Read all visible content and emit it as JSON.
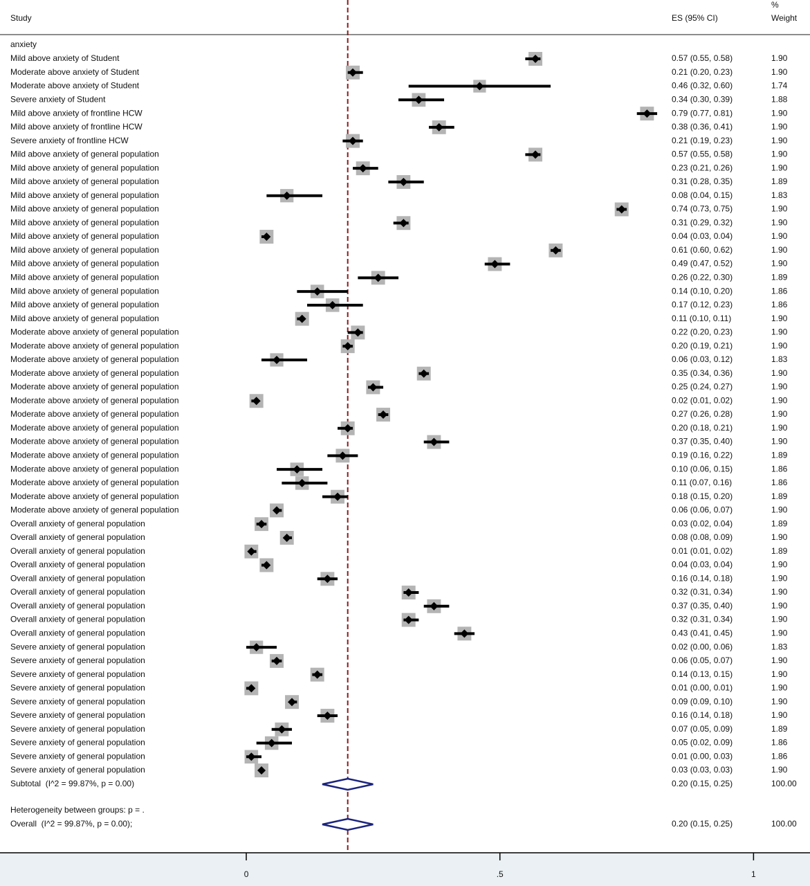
{
  "chart_data": {
    "type": "forest",
    "headers": {
      "study": "Study",
      "es": "ES (95% CI)",
      "weight_top": "%",
      "weight_bottom": "Weight"
    },
    "group": "anxiety",
    "categories": [
      "Mild above anxiety of Student",
      "Moderate above anxiety of Student",
      "Moderate above anxiety of Student",
      "Severe anxiety of Student",
      "Mild above anxiety of frontline HCW",
      "Mild above anxiety of frontline HCW",
      "Severe anxiety of frontline HCW",
      "Mild above anxiety of general population",
      "Mild above anxiety of general population",
      "Mild above anxiety of general population",
      "Mild above anxiety of general population",
      "Mild above anxiety of general population",
      "Mild above anxiety of general population",
      "Mild above anxiety of general population",
      "Mild above anxiety of general population",
      "Mild above anxiety of general population",
      "Mild above anxiety of general population",
      "Mild above anxiety of general population",
      "Mild above anxiety of general population",
      "Mild above anxiety of general population",
      "Moderate above anxiety of general population",
      "Moderate above anxiety of general population",
      "Moderate above anxiety of general population",
      "Moderate above anxiety of general population",
      "Moderate above anxiety of general population",
      "Moderate above anxiety of general population",
      "Moderate above anxiety of general population",
      "Moderate above anxiety of general population",
      "Moderate above anxiety of general population",
      "Moderate above anxiety of general population",
      "Moderate above anxiety of general population",
      "Moderate above anxiety of general population",
      "Moderate above anxiety of general population",
      "Moderate above anxiety of general population",
      "Overall anxiety of general population",
      "Overall anxiety of general population",
      "Overall anxiety of general population",
      "Overall anxiety of general population",
      "Overall anxiety of general population",
      "Overall anxiety of general population",
      "Overall anxiety of general population",
      "Overall anxiety of general population",
      "Overall anxiety of general population",
      "Severe anxiety of general population",
      "Severe anxiety of general population",
      "Severe anxiety of general population",
      "Severe anxiety of general population",
      "Severe anxiety of general population",
      "Severe anxiety of general population",
      "Severe anxiety of general population",
      "Severe anxiety of general population",
      "Severe anxiety of general population",
      "Severe anxiety of general population"
    ],
    "values": [
      0.57,
      0.21,
      0.46,
      0.34,
      0.79,
      0.38,
      0.21,
      0.57,
      0.23,
      0.31,
      0.08,
      0.74,
      0.31,
      0.04,
      0.61,
      0.49,
      0.26,
      0.14,
      0.17,
      0.11,
      0.22,
      0.2,
      0.06,
      0.35,
      0.25,
      0.02,
      0.27,
      0.2,
      0.37,
      0.19,
      0.1,
      0.11,
      0.18,
      0.06,
      0.03,
      0.08,
      0.01,
      0.04,
      0.16,
      0.32,
      0.37,
      0.32,
      0.43,
      0.02,
      0.06,
      0.14,
      0.01,
      0.09,
      0.16,
      0.07,
      0.05,
      0.01,
      0.03
    ],
    "lower": [
      0.55,
      0.2,
      0.32,
      0.3,
      0.77,
      0.36,
      0.19,
      0.55,
      0.21,
      0.28,
      0.04,
      0.73,
      0.29,
      0.03,
      0.6,
      0.47,
      0.22,
      0.1,
      0.12,
      0.1,
      0.2,
      0.19,
      0.03,
      0.34,
      0.24,
      0.01,
      0.26,
      0.18,
      0.35,
      0.16,
      0.06,
      0.07,
      0.15,
      0.06,
      0.02,
      0.08,
      0.01,
      0.03,
      0.14,
      0.31,
      0.35,
      0.31,
      0.41,
      0.0,
      0.05,
      0.13,
      0.0,
      0.09,
      0.14,
      0.05,
      0.02,
      0.0,
      0.03
    ],
    "upper": [
      0.58,
      0.23,
      0.6,
      0.39,
      0.81,
      0.41,
      0.23,
      0.58,
      0.26,
      0.35,
      0.15,
      0.75,
      0.32,
      0.04,
      0.62,
      0.52,
      0.3,
      0.2,
      0.23,
      0.11,
      0.23,
      0.21,
      0.12,
      0.36,
      0.27,
      0.02,
      0.28,
      0.21,
      0.4,
      0.22,
      0.15,
      0.16,
      0.2,
      0.07,
      0.04,
      0.09,
      0.02,
      0.04,
      0.18,
      0.34,
      0.4,
      0.34,
      0.45,
      0.06,
      0.07,
      0.15,
      0.01,
      0.1,
      0.18,
      0.09,
      0.09,
      0.03,
      0.03
    ],
    "value_labels": [
      "0.57 (0.55, 0.58)",
      "0.21 (0.20, 0.23)",
      "0.46 (0.32, 0.60)",
      "0.34 (0.30, 0.39)",
      "0.79 (0.77, 0.81)",
      "0.38 (0.36, 0.41)",
      "0.21 (0.19, 0.23)",
      "0.57 (0.55, 0.58)",
      "0.23 (0.21, 0.26)",
      "0.31 (0.28, 0.35)",
      "0.08 (0.04, 0.15)",
      "0.74 (0.73, 0.75)",
      "0.31 (0.29, 0.32)",
      "0.04 (0.03, 0.04)",
      "0.61 (0.60, 0.62)",
      "0.49 (0.47, 0.52)",
      "0.26 (0.22, 0.30)",
      "0.14 (0.10, 0.20)",
      "0.17 (0.12, 0.23)",
      "0.11 (0.10, 0.11)",
      "0.22 (0.20, 0.23)",
      "0.20 (0.19, 0.21)",
      "0.06 (0.03, 0.12)",
      "0.35 (0.34, 0.36)",
      "0.25 (0.24, 0.27)",
      "0.02 (0.01, 0.02)",
      "0.27 (0.26, 0.28)",
      "0.20 (0.18, 0.21)",
      "0.37 (0.35, 0.40)",
      "0.19 (0.16, 0.22)",
      "0.10 (0.06, 0.15)",
      "0.11 (0.07, 0.16)",
      "0.18 (0.15, 0.20)",
      "0.06 (0.06, 0.07)",
      "0.03 (0.02, 0.04)",
      "0.08 (0.08, 0.09)",
      "0.01 (0.01, 0.02)",
      "0.04 (0.03, 0.04)",
      "0.16 (0.14, 0.18)",
      "0.32 (0.31, 0.34)",
      "0.37 (0.35, 0.40)",
      "0.32 (0.31, 0.34)",
      "0.43 (0.41, 0.45)",
      "0.02 (0.00, 0.06)",
      "0.06 (0.05, 0.07)",
      "0.14 (0.13, 0.15)",
      "0.01 (0.00, 0.01)",
      "0.09 (0.09, 0.10)",
      "0.16 (0.14, 0.18)",
      "0.07 (0.05, 0.09)",
      "0.05 (0.02, 0.09)",
      "0.01 (0.00, 0.03)",
      "0.03 (0.03, 0.03)"
    ],
    "weights": [
      1.9,
      1.9,
      1.74,
      1.88,
      1.9,
      1.9,
      1.9,
      1.9,
      1.9,
      1.89,
      1.83,
      1.9,
      1.9,
      1.9,
      1.9,
      1.9,
      1.89,
      1.86,
      1.86,
      1.9,
      1.9,
      1.9,
      1.83,
      1.9,
      1.9,
      1.9,
      1.9,
      1.9,
      1.9,
      1.89,
      1.86,
      1.86,
      1.89,
      1.9,
      1.89,
      1.9,
      1.89,
      1.9,
      1.9,
      1.9,
      1.9,
      1.9,
      1.9,
      1.83,
      1.9,
      1.9,
      1.9,
      1.9,
      1.9,
      1.89,
      1.86,
      1.86,
      1.9
    ],
    "weight_labels": [
      "1.90",
      "1.90",
      "1.74",
      "1.88",
      "1.90",
      "1.90",
      "1.90",
      "1.90",
      "1.90",
      "1.89",
      "1.83",
      "1.90",
      "1.90",
      "1.90",
      "1.90",
      "1.90",
      "1.89",
      "1.86",
      "1.86",
      "1.90",
      "1.90",
      "1.90",
      "1.83",
      "1.90",
      "1.90",
      "1.90",
      "1.90",
      "1.90",
      "1.90",
      "1.89",
      "1.86",
      "1.86",
      "1.89",
      "1.90",
      "1.89",
      "1.90",
      "1.89",
      "1.90",
      "1.90",
      "1.90",
      "1.90",
      "1.90",
      "1.90",
      "1.83",
      "1.90",
      "1.90",
      "1.90",
      "1.90",
      "1.90",
      "1.89",
      "1.86",
      "1.86",
      "1.90"
    ],
    "subtotal": {
      "label": "Subtotal  (I^2 = 99.87%, p = 0.00)",
      "es": 0.2,
      "lower": 0.15,
      "upper": 0.25,
      "value_label": "0.20 (0.15, 0.25)",
      "weight_label": "100.00"
    },
    "heterogeneity": "Heterogeneity between groups: p = .",
    "overall": {
      "label": "Overall  (I^2 = 99.87%, p = 0.00);",
      "es": 0.2,
      "lower": 0.15,
      "upper": 0.25,
      "value_label": "0.20 (0.15, 0.25)",
      "weight_label": "100.00"
    },
    "xlim": [
      -0.4855,
      1.1113
    ],
    "xticks": [
      0,
      {
        "value": 0.5,
        "label": ".5"
      },
      1
    ],
    "colors": {
      "box": "#b4b4b4",
      "point": "#000000",
      "ci": "#000000",
      "diamond": "#1a237e",
      "reference": "#8b1a1a"
    }
  }
}
